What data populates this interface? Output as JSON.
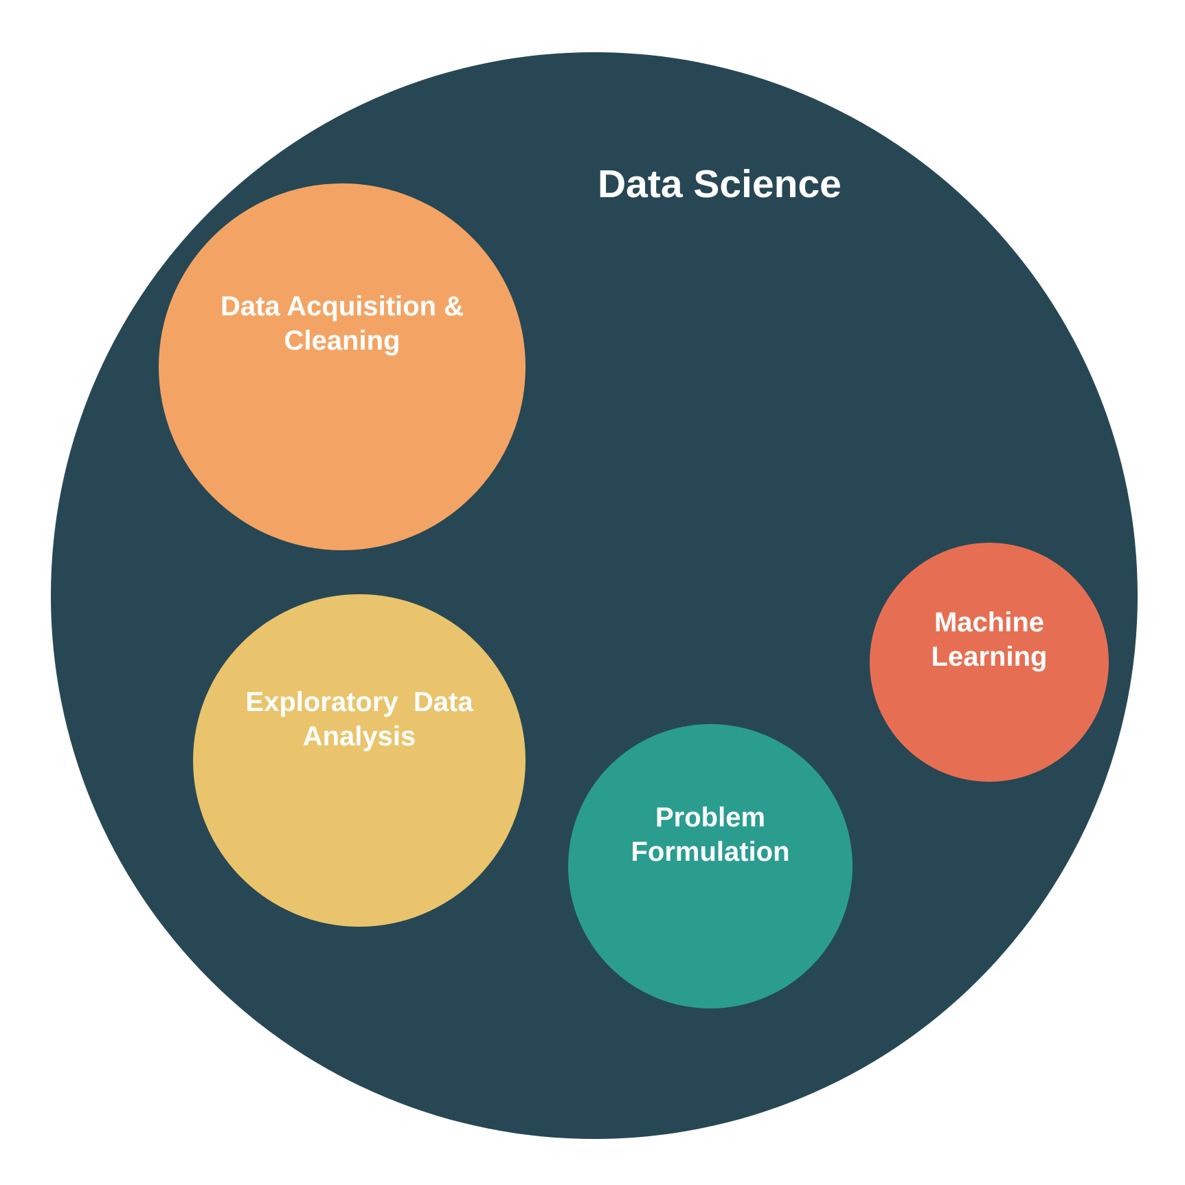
{
  "diagram": {
    "title": "Data Science",
    "colors": {
      "outer": "#274754",
      "acquisition": "#F3A464",
      "exploratory": "#E9C46C",
      "problem": "#2A9D8F",
      "machine_learning": "#E66F53",
      "text": "#FFFFFF"
    },
    "nodes": [
      {
        "id": "acquisition",
        "label": "Data Acquisition &\nCleaning"
      },
      {
        "id": "exploratory",
        "label": "Exploratory  Data\nAnalysis"
      },
      {
        "id": "problem",
        "label": "Problem\nFormulation"
      },
      {
        "id": "machine_learning",
        "label": "Machine\nLearning"
      }
    ]
  }
}
